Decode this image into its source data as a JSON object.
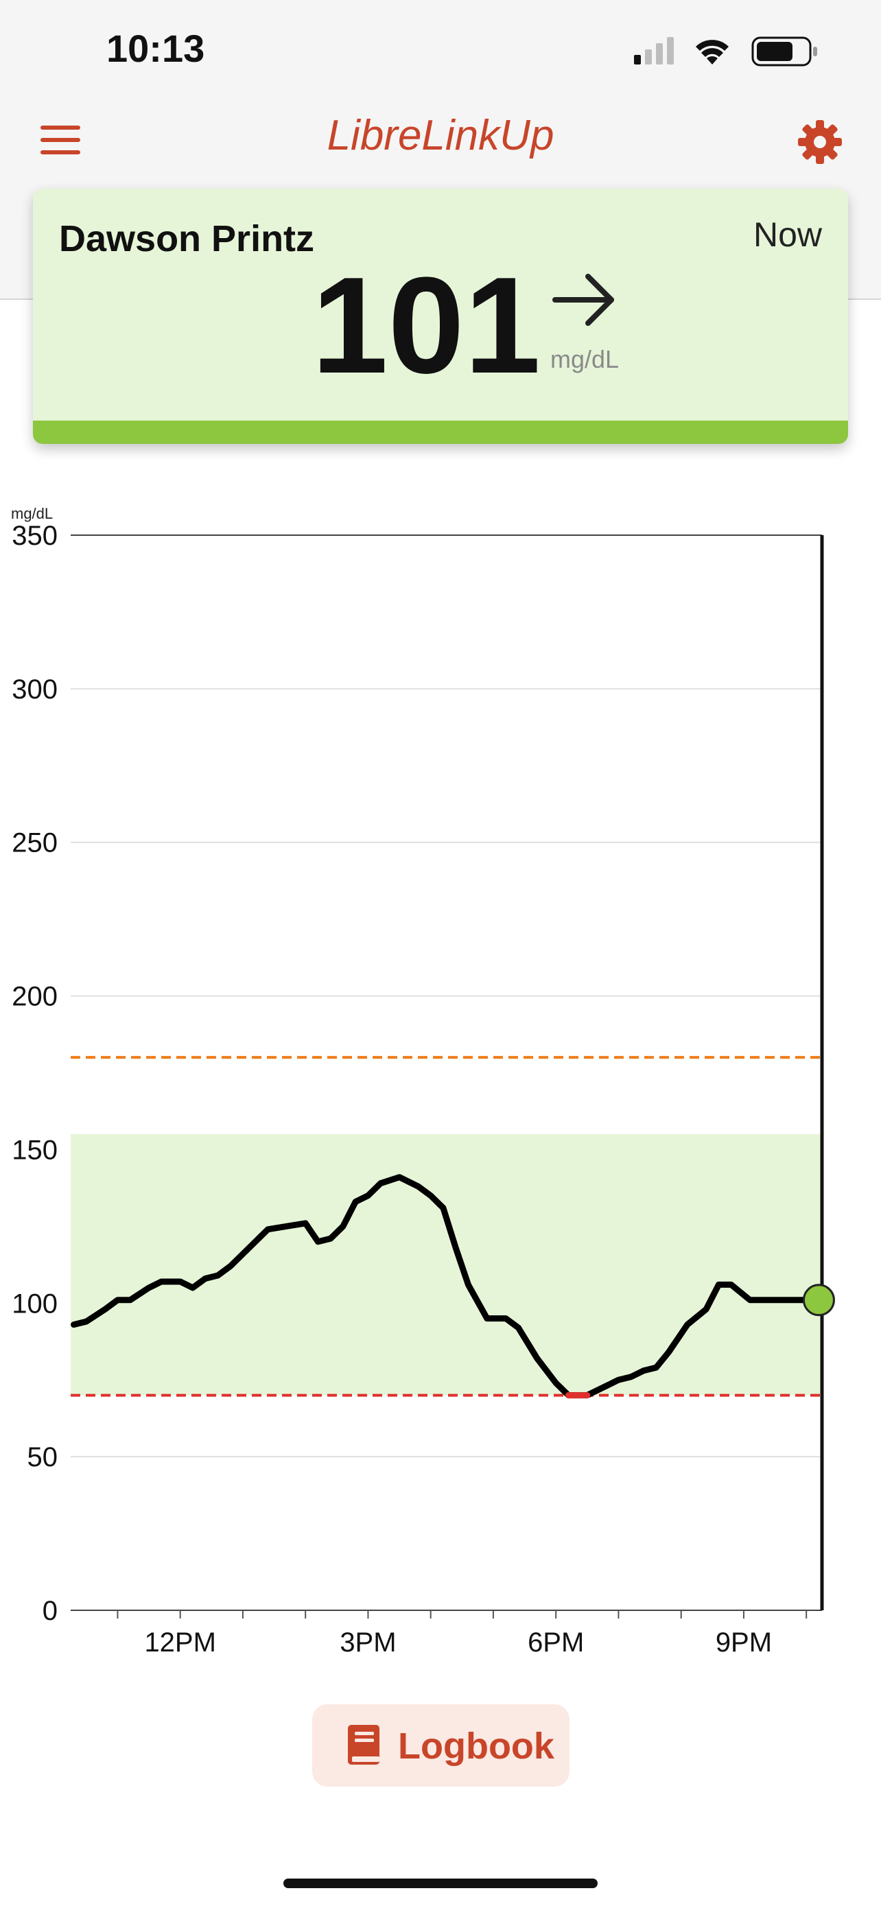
{
  "status_bar": {
    "time": "10:13",
    "icons": [
      "cellular-signal-icon",
      "wifi-icon",
      "battery-icon"
    ]
  },
  "nav": {
    "title": "LibreLinkUp",
    "menu_icon": "hamburger-menu-icon",
    "settings_icon": "gear-icon"
  },
  "reading": {
    "patient_name": "Dawson Printz",
    "time_label": "Now",
    "value": "101",
    "unit": "mg/dL",
    "trend_icon": "arrow-right-icon",
    "status_color": "#8dc63f"
  },
  "colors": {
    "brand": "#c8452a",
    "card_bg": "#e6f5d8",
    "target_band": "#e6f5d8",
    "high_line": "#f07d1a",
    "low_line": "#e0302c",
    "in_range": "#8dc63f"
  },
  "chart_data": {
    "type": "line",
    "unit_label": "mg/dL",
    "ylim": [
      0,
      350
    ],
    "y_ticks": [
      "0",
      "50",
      "100",
      "150",
      "200",
      "250",
      "300",
      "350"
    ],
    "x_ticks": [
      "12PM",
      "3PM",
      "6PM",
      "9PM"
    ],
    "x_tick_hours": [
      12,
      15,
      18,
      21
    ],
    "xlim_hours": [
      10.25,
      22.25
    ],
    "target_range": [
      70,
      155
    ],
    "high_threshold": 180,
    "low_threshold": 70,
    "series": [
      {
        "x_hours": [
          10.3,
          10.5,
          10.8,
          11.0,
          11.2,
          11.5,
          11.7,
          12.0,
          12.2,
          12.4,
          12.6,
          12.8,
          13.1,
          13.4,
          13.7,
          14.0,
          14.2,
          14.4,
          14.6,
          14.8,
          15.0,
          15.2,
          15.5,
          15.8,
          16.0,
          16.2,
          16.4,
          16.6,
          16.9,
          17.2,
          17.4,
          17.7,
          18.0,
          18.2,
          18.5,
          18.8,
          19.0,
          19.2,
          19.4,
          19.6,
          19.8,
          20.1,
          20.4,
          20.6,
          20.8,
          21.1,
          21.4,
          21.6,
          21.8,
          22.0,
          22.2
        ],
        "values": [
          93,
          94,
          98,
          101,
          101,
          105,
          107,
          107,
          105,
          108,
          109,
          112,
          118,
          124,
          125,
          126,
          120,
          121,
          125,
          133,
          135,
          139,
          141,
          138,
          135,
          131,
          118,
          106,
          95,
          95,
          92,
          82,
          74,
          70,
          70,
          73,
          75,
          76,
          78,
          79,
          84,
          93,
          98,
          106,
          106,
          101,
          101,
          101,
          101,
          101,
          101
        ]
      }
    ],
    "current_point": {
      "x_hour": 22.2,
      "value": 101
    }
  },
  "logbook": {
    "label": "Logbook",
    "icon": "book-icon"
  }
}
